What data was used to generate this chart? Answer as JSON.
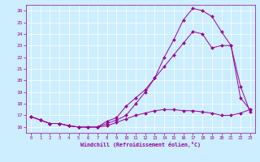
{
  "xlabel": "Windchill (Refroidissement éolien,°C)",
  "background_color": "#cceeff",
  "line_color": "#990099",
  "xlim": [
    -0.5,
    23.5
  ],
  "ylim": [
    15.5,
    26.5
  ],
  "xticks": [
    0,
    1,
    2,
    3,
    4,
    5,
    6,
    7,
    8,
    9,
    10,
    11,
    12,
    13,
    14,
    15,
    16,
    17,
    18,
    19,
    20,
    21,
    22,
    23
  ],
  "yticks": [
    16,
    17,
    18,
    19,
    20,
    21,
    22,
    23,
    24,
    25,
    26
  ],
  "line1_x": [
    0,
    1,
    2,
    3,
    4,
    5,
    6,
    7,
    8,
    9,
    10,
    11,
    12,
    13,
    14,
    15,
    16,
    17,
    18,
    19,
    20,
    21,
    22,
    23
  ],
  "line1_y": [
    16.9,
    16.6,
    16.3,
    16.3,
    16.1,
    16.0,
    16.0,
    16.0,
    16.1,
    16.4,
    16.7,
    17.0,
    17.2,
    17.4,
    17.5,
    17.5,
    17.4,
    17.4,
    17.3,
    17.2,
    17.0,
    17.0,
    17.2,
    17.5
  ],
  "line2_x": [
    0,
    1,
    2,
    3,
    4,
    5,
    6,
    7,
    8,
    9,
    10,
    11,
    12,
    13,
    14,
    15,
    16,
    17,
    18,
    19,
    20,
    21,
    22,
    23
  ],
  "line2_y": [
    16.9,
    16.6,
    16.3,
    16.3,
    16.1,
    16.0,
    16.0,
    16.0,
    16.5,
    16.8,
    17.8,
    18.5,
    19.2,
    20.2,
    21.2,
    22.2,
    23.2,
    24.2,
    24.0,
    22.8,
    23.0,
    23.0,
    18.5,
    17.5
  ],
  "line3_x": [
    0,
    1,
    2,
    3,
    4,
    5,
    6,
    7,
    8,
    9,
    10,
    11,
    12,
    13,
    14,
    15,
    16,
    17,
    18,
    19,
    20,
    21,
    22,
    23
  ],
  "line3_y": [
    16.9,
    16.6,
    16.3,
    16.3,
    16.1,
    16.0,
    16.0,
    16.0,
    16.3,
    16.6,
    17.0,
    18.0,
    19.0,
    20.2,
    22.0,
    23.5,
    25.2,
    26.2,
    26.0,
    25.5,
    24.2,
    23.0,
    19.5,
    17.3
  ]
}
